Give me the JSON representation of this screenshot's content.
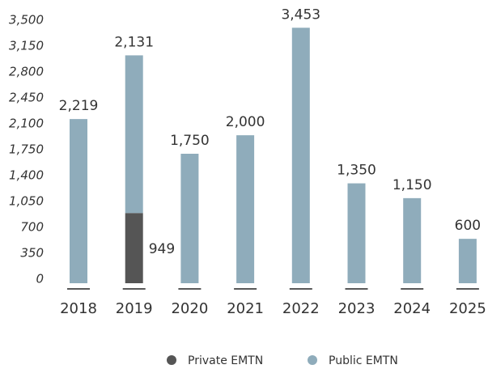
{
  "chart_data": {
    "type": "stacked_bar",
    "categories": [
      "2018",
      "2019",
      "2020",
      "2021",
      "2022",
      "2023",
      "2024",
      "2025"
    ],
    "series": [
      {
        "name": "Private EMTN",
        "color": "#555555",
        "values": [
          null,
          949,
          null,
          null,
          null,
          null,
          null,
          null
        ],
        "value_labels": [
          null,
          "949",
          null,
          null,
          null,
          null,
          null,
          null
        ]
      },
      {
        "name": "Public EMTN",
        "color": "#8facbb",
        "values": [
          2219,
          2131,
          1750,
          2000,
          3453,
          1350,
          1150,
          600
        ],
        "value_labels": [
          "2,219",
          "2,131",
          "1,750",
          "2,000",
          "3,453",
          "1,350",
          "1,150",
          "600"
        ]
      }
    ],
    "ylim": [
      0,
      3500
    ],
    "yticks": [
      0,
      350,
      700,
      {
        "value": 1050,
        "label": "1,050"
      },
      {
        "value": 1400,
        "label": "1,400"
      },
      {
        "value": 1750,
        "label": "1,750"
      },
      {
        "value": 2100,
        "label": "2,100"
      },
      {
        "value": 2450,
        "label": "2,450"
      },
      {
        "value": 2800,
        "label": "2,800"
      },
      {
        "value": 3150,
        "label": "3,150"
      },
      {
        "value": 3500,
        "label": "3,500"
      }
    ],
    "legend": "bottom"
  }
}
